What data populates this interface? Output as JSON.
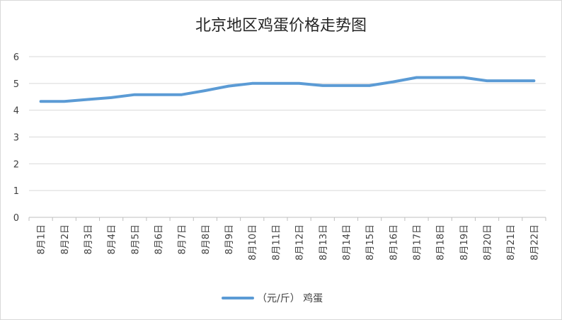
{
  "chart_data": {
    "type": "line",
    "title": "北京地区鸡蛋价格走势图",
    "categories": [
      "8月1日",
      "8月2日",
      "8月3日",
      "8月4日",
      "8月5日",
      "8月6日",
      "8月7日",
      "8月8日",
      "8月9日",
      "8月10日",
      "8月11日",
      "8月12日",
      "8月13日",
      "8月14日",
      "8月15日",
      "8月16日",
      "8月17日",
      "8月18日",
      "8月19日",
      "8月20日",
      "8月21日",
      "8月22日"
    ],
    "series": [
      {
        "name": "（元/斤） 鸡蛋",
        "color": "#5b9bd5",
        "values": [
          4.33,
          4.33,
          4.4,
          4.47,
          4.58,
          4.58,
          4.58,
          4.73,
          4.9,
          5.0,
          5.0,
          5.0,
          4.92,
          4.92,
          4.92,
          5.06,
          5.22,
          5.22,
          5.22,
          5.1,
          5.1,
          5.1
        ]
      }
    ],
    "ylim": [
      0,
      6
    ],
    "yticks": [
      "0",
      "1",
      "2",
      "3",
      "4",
      "5",
      "6"
    ],
    "grid": true,
    "legend_position": "bottom",
    "xlabel": "",
    "ylabel": ""
  },
  "colors": {
    "grid": "#d9d9d9",
    "axis": "#bfbfbf"
  }
}
